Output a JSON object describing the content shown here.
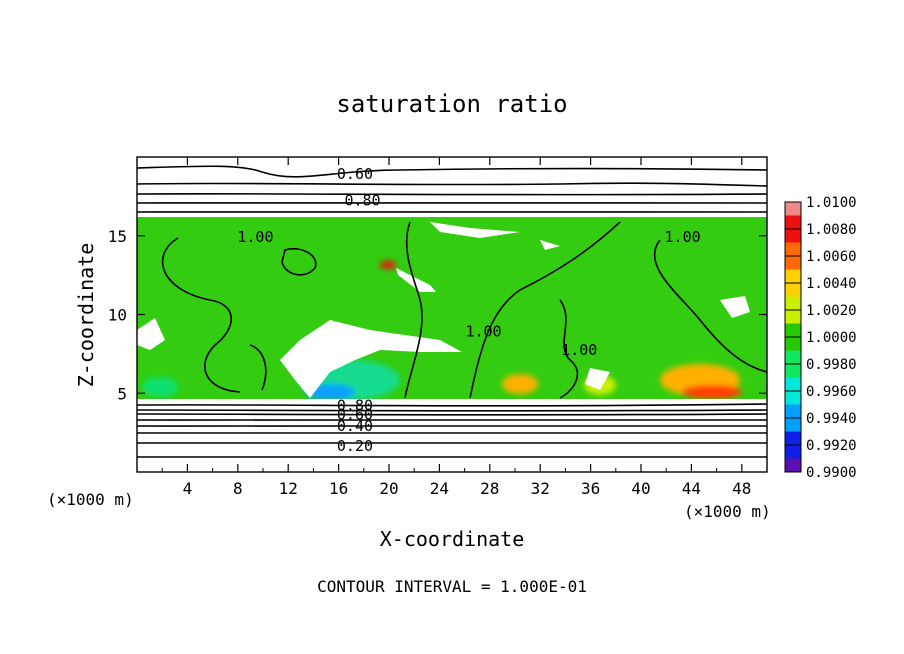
{
  "chart_data": {
    "type": "heatmap",
    "title": "saturation ratio",
    "xlabel": "X-coordinate",
    "ylabel": "Z-coordinate",
    "x_unit": "(×1000 m)",
    "y_unit": "(×1000 m)",
    "xlim": [
      0,
      50
    ],
    "ylim": [
      0,
      20
    ],
    "x_ticks": [
      "4",
      "8",
      "12",
      "16",
      "20",
      "24",
      "28",
      "32",
      "36",
      "40",
      "44",
      "48"
    ],
    "y_ticks": [
      "5",
      "10",
      "15"
    ],
    "footer": "CONTOUR INTERVAL = 1.000E-01",
    "contour_labels": [
      {
        "text": "0.60",
        "x": 17.3,
        "z": 19.0
      },
      {
        "text": "0.80",
        "x": 17.9,
        "z": 17.3
      },
      {
        "text": "1.00",
        "x": 9.4,
        "z": 15.0
      },
      {
        "text": "1.00",
        "x": 43.3,
        "z": 15.0
      },
      {
        "text": "1.00",
        "x": 27.5,
        "z": 9.0
      },
      {
        "text": "1.00",
        "x": 35.1,
        "z": 7.8
      },
      {
        "text": "0.80",
        "x": 17.3,
        "z": 4.3
      },
      {
        "text": "0.60",
        "x": 17.3,
        "z": 3.7
      },
      {
        "text": "0.40",
        "x": 17.3,
        "z": 3.0
      },
      {
        "text": "0.20",
        "x": 17.3,
        "z": 1.7
      }
    ],
    "colorbar": {
      "levels": [
        "1.0100",
        "1.0080",
        "1.0060",
        "1.0040",
        "1.0020",
        "1.0000",
        "0.9980",
        "0.9960",
        "0.9940",
        "0.9920",
        "0.9900"
      ],
      "colors": [
        "#f08a8a",
        "#ee1010",
        "#ff6a00",
        "#ffd000",
        "#c8f000",
        "#26c800",
        "#10e860",
        "#00e8d8",
        "#00a0ff",
        "#1020e8",
        "#5a10b0"
      ]
    }
  }
}
